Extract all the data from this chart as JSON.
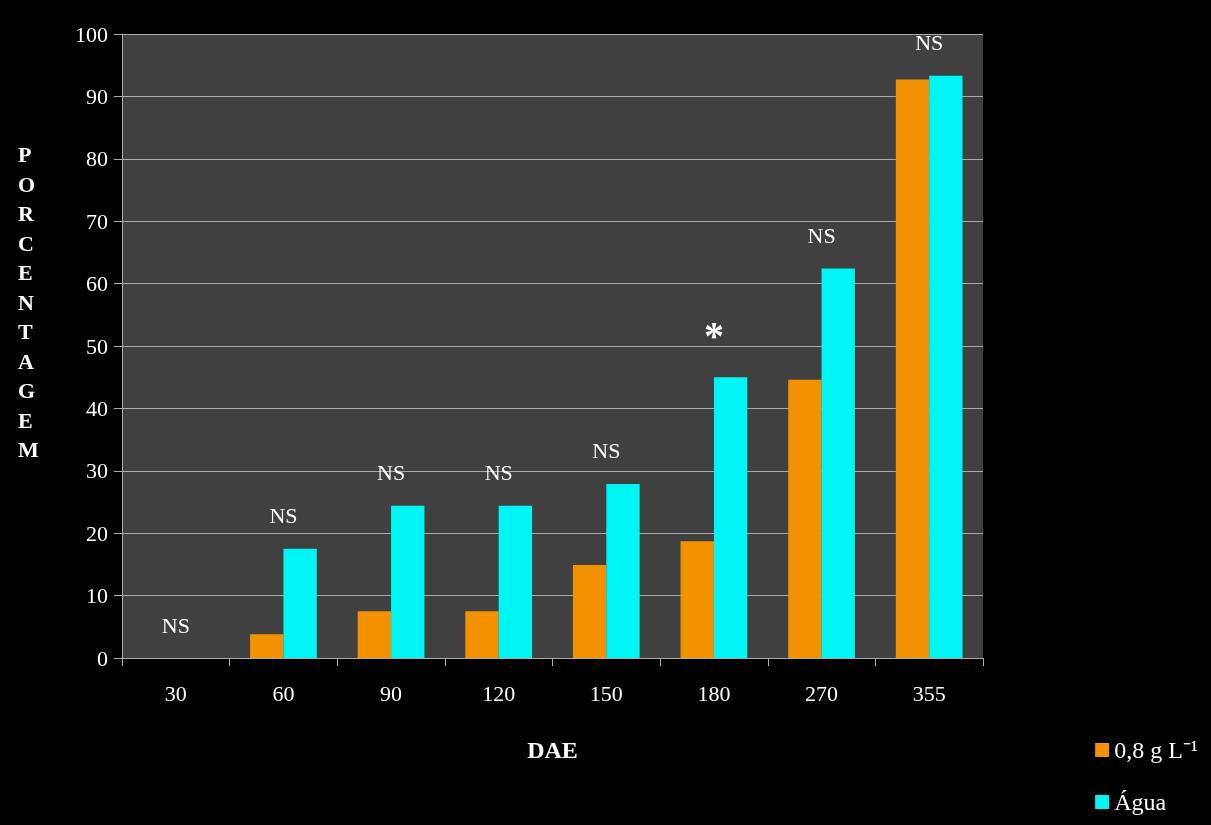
{
  "chart_data": {
    "type": "bar",
    "xlabel": "DAE",
    "ylabel": "PORCENTAGEM",
    "categories": [
      "30",
      "60",
      "90",
      "120",
      "150",
      "180",
      "270",
      "355"
    ],
    "series": [
      {
        "name": "0,8 g L⁻¹",
        "color": "#f39200",
        "values": [
          0,
          3.8,
          7.5,
          7.5,
          14.9,
          18.7,
          44.6,
          92.7
        ]
      },
      {
        "name": "Água",
        "color": "#00f5f5",
        "values": [
          0,
          17.5,
          24.4,
          24.4,
          27.9,
          45.0,
          62.4,
          93.3
        ]
      }
    ],
    "ylim": [
      0,
      100
    ],
    "yticks": [
      0,
      10,
      20,
      30,
      40,
      50,
      60,
      70,
      80,
      90,
      100
    ],
    "grid": "y",
    "legend": "bottom right",
    "annotations": [
      {
        "text": "NS",
        "x": "30",
        "y": 0
      },
      {
        "text": "NS",
        "x": "60",
        "y": 17.5
      },
      {
        "text": "NS",
        "x": "90",
        "y": 24.4
      },
      {
        "text": "NS",
        "x": "120",
        "y": 24.4
      },
      {
        "text": "NS",
        "x": "150",
        "y": 27.9
      },
      {
        "text": "*",
        "x": "180",
        "y": 45.0
      },
      {
        "text": "NS",
        "x": "270",
        "y": 62.4
      },
      {
        "text": "NS",
        "x": "355",
        "y": 93.3
      }
    ]
  }
}
